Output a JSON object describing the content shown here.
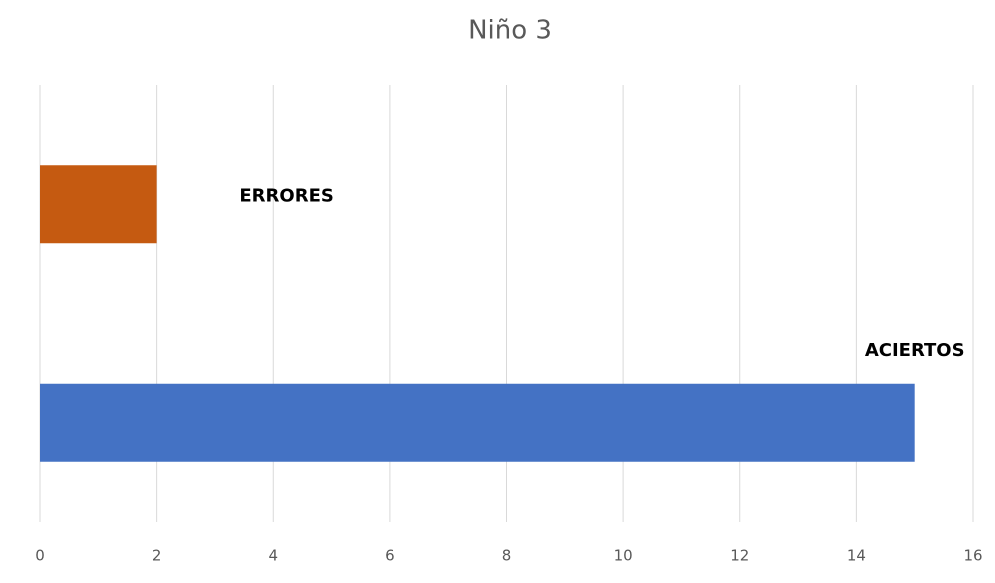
{
  "chart_data": {
    "type": "bar",
    "orientation": "horizontal",
    "title": "Niño 3",
    "categories": [
      "ERRORES",
      "ACIERTOS"
    ],
    "values": [
      2,
      15
    ],
    "colors": [
      "#c55a11",
      "#4472c4"
    ],
    "xlim": [
      0,
      16
    ],
    "xticks": [
      0,
      2,
      4,
      6,
      8,
      10,
      12,
      14,
      16
    ],
    "grid": true
  }
}
